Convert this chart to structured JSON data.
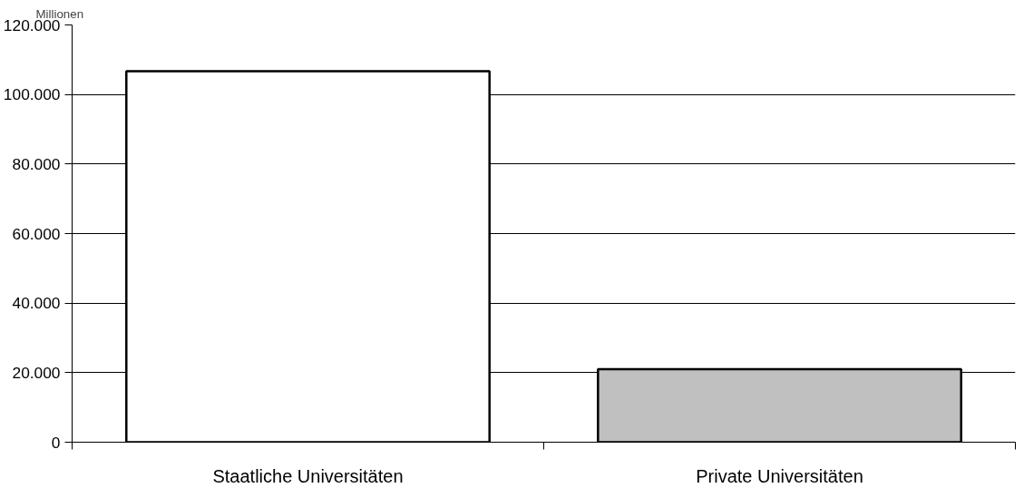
{
  "chart_data": {
    "type": "bar",
    "ylabel": "Millionen",
    "categories": [
      "Staatliche Universitäten",
      "Private Universitäten"
    ],
    "values": [
      106700,
      21000
    ],
    "colors": [
      "#ffffff",
      "#c0c0c0"
    ],
    "ylim": [
      0,
      120000
    ],
    "yticks": [
      {
        "value": 0,
        "label": "0"
      },
      {
        "value": 20000,
        "label": "20.000"
      },
      {
        "value": 40000,
        "label": "40.000"
      },
      {
        "value": 60000,
        "label": "60.000"
      },
      {
        "value": 80000,
        "label": "80.000"
      },
      {
        "value": 100000,
        "label": "100.000"
      },
      {
        "value": 120000,
        "label": "120.000"
      }
    ],
    "grid": "y"
  }
}
